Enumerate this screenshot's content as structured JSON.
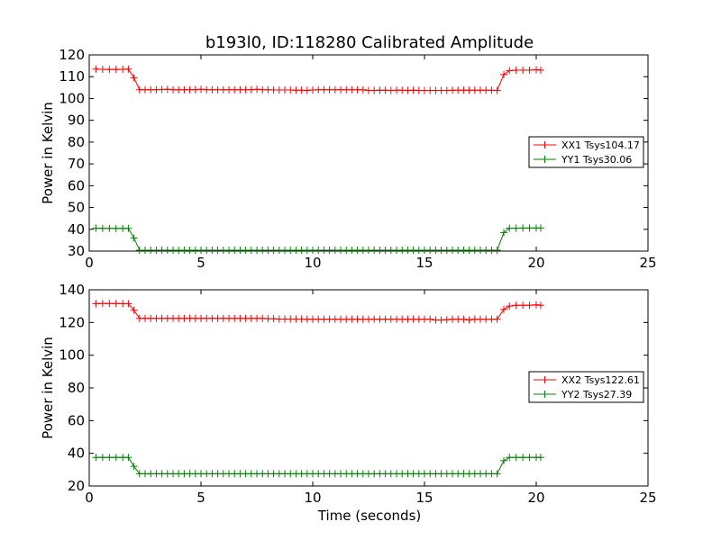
{
  "figure": {
    "title": "b193l0, ID:118280 Calibrated Amplitude",
    "xlabel": "Time (seconds)"
  },
  "chart_data": [
    {
      "type": "line",
      "ylabel": "Power in Kelvin",
      "xlim": [
        0,
        25
      ],
      "ylim": [
        30,
        120
      ],
      "xticks": [
        0,
        5,
        10,
        15,
        20,
        25
      ],
      "yticks": [
        30,
        40,
        50,
        60,
        70,
        80,
        90,
        100,
        110,
        120
      ],
      "grid": false,
      "legend_position": "center-right",
      "x": [
        0.3,
        0.6,
        0.9,
        1.2,
        1.5,
        1.75,
        2.0,
        2.25,
        2.5,
        2.75,
        3.0,
        3.25,
        3.5,
        3.75,
        4.0,
        4.25,
        4.5,
        4.75,
        5.0,
        5.25,
        5.5,
        5.75,
        6.0,
        6.25,
        6.5,
        6.75,
        7.0,
        7.25,
        7.5,
        7.75,
        8.0,
        8.25,
        8.5,
        8.75,
        9.0,
        9.25,
        9.5,
        9.75,
        10.0,
        10.25,
        10.5,
        10.75,
        11.0,
        11.25,
        11.5,
        11.75,
        12.0,
        12.25,
        12.5,
        12.75,
        13.0,
        13.25,
        13.5,
        13.75,
        14.0,
        14.25,
        14.5,
        14.75,
        15.0,
        15.25,
        15.5,
        15.75,
        16.0,
        16.25,
        16.5,
        16.75,
        17.0,
        17.25,
        17.5,
        17.75,
        18.0,
        18.25,
        18.55,
        18.8,
        19.1,
        19.4,
        19.7,
        20.0,
        20.2
      ],
      "series": [
        {
          "name": "XX1 Tsys104.17",
          "color": "#ff0000",
          "values": [
            113.5,
            113.4,
            113.3,
            113.3,
            113.4,
            113.5,
            109.5,
            104.0,
            104.0,
            104.0,
            104.0,
            104.1,
            104.2,
            104.0,
            104.0,
            104.0,
            104.0,
            104.0,
            104.2,
            104.0,
            104.0,
            104.0,
            104.0,
            104.0,
            104.0,
            104.0,
            104.0,
            104.0,
            104.2,
            104.0,
            104.0,
            103.9,
            103.9,
            103.9,
            103.9,
            103.8,
            103.8,
            103.7,
            103.9,
            104.0,
            104.0,
            104.0,
            104.0,
            104.0,
            104.0,
            104.0,
            104.0,
            104.0,
            103.7,
            103.7,
            103.8,
            103.8,
            103.7,
            103.8,
            103.8,
            103.7,
            103.8,
            103.7,
            103.7,
            103.7,
            103.7,
            103.7,
            103.7,
            103.8,
            103.8,
            103.8,
            103.8,
            103.8,
            103.8,
            103.8,
            103.8,
            103.7,
            111.0,
            112.8,
            113.0,
            113.0,
            113.0,
            113.2,
            113.0
          ]
        },
        {
          "name": "YY1 Tsys30.06",
          "color": "#008000",
          "values": [
            40.5,
            40.4,
            40.4,
            40.4,
            40.4,
            40.4,
            36.0,
            30.4,
            30.4,
            30.4,
            30.4,
            30.4,
            30.4,
            30.4,
            30.4,
            30.4,
            30.4,
            30.4,
            30.4,
            30.4,
            30.4,
            30.4,
            30.4,
            30.4,
            30.4,
            30.4,
            30.4,
            30.4,
            30.4,
            30.4,
            30.4,
            30.4,
            30.4,
            30.4,
            30.4,
            30.4,
            30.4,
            30.4,
            30.4,
            30.4,
            30.4,
            30.4,
            30.4,
            30.4,
            30.4,
            30.4,
            30.4,
            30.4,
            30.4,
            30.4,
            30.4,
            30.4,
            30.4,
            30.4,
            30.4,
            30.4,
            30.4,
            30.4,
            30.4,
            30.4,
            30.4,
            30.4,
            30.4,
            30.4,
            30.4,
            30.4,
            30.4,
            30.4,
            30.4,
            30.4,
            30.4,
            30.4,
            38.5,
            40.5,
            40.5,
            40.6,
            40.6,
            40.6,
            40.6
          ]
        }
      ]
    },
    {
      "type": "line",
      "ylabel": "Power in Kelvin",
      "xlabel": "Time (seconds)",
      "xlim": [
        0,
        25
      ],
      "ylim": [
        20,
        140
      ],
      "xticks": [
        0,
        5,
        10,
        15,
        20,
        25
      ],
      "yticks": [
        20,
        40,
        60,
        80,
        100,
        120,
        140
      ],
      "grid": false,
      "legend_position": "center-right",
      "x": [
        0.3,
        0.6,
        0.9,
        1.2,
        1.5,
        1.75,
        2.0,
        2.25,
        2.5,
        2.75,
        3.0,
        3.25,
        3.5,
        3.75,
        4.0,
        4.25,
        4.5,
        4.75,
        5.0,
        5.25,
        5.5,
        5.75,
        6.0,
        6.25,
        6.5,
        6.75,
        7.0,
        7.25,
        7.5,
        7.75,
        8.0,
        8.25,
        8.5,
        8.75,
        9.0,
        9.25,
        9.5,
        9.75,
        10.0,
        10.25,
        10.5,
        10.75,
        11.0,
        11.25,
        11.5,
        11.75,
        12.0,
        12.25,
        12.5,
        12.75,
        13.0,
        13.25,
        13.5,
        13.75,
        14.0,
        14.25,
        14.5,
        14.75,
        15.0,
        15.25,
        15.5,
        15.75,
        16.0,
        16.25,
        16.5,
        16.75,
        17.0,
        17.25,
        17.5,
        17.75,
        18.0,
        18.25,
        18.55,
        18.8,
        19.1,
        19.4,
        19.7,
        20.0,
        20.2
      ],
      "series": [
        {
          "name": "XX2 Tsys122.61",
          "color": "#ff0000",
          "values": [
            131.5,
            131.6,
            131.6,
            131.6,
            131.5,
            131.5,
            127.5,
            122.5,
            122.5,
            122.5,
            122.5,
            122.5,
            122.5,
            122.5,
            122.5,
            122.5,
            122.6,
            122.5,
            122.5,
            122.5,
            122.5,
            122.5,
            122.5,
            122.5,
            122.5,
            122.5,
            122.5,
            122.5,
            122.5,
            122.5,
            122.3,
            122.3,
            122.1,
            122.1,
            122.1,
            122.1,
            122.1,
            122.0,
            122.0,
            122.0,
            122.0,
            122.0,
            122.0,
            122.0,
            122.0,
            122.0,
            122.0,
            122.0,
            122.0,
            122.0,
            122.0,
            122.0,
            122.0,
            122.0,
            122.0,
            122.0,
            122.0,
            122.0,
            122.0,
            122.0,
            121.5,
            121.5,
            121.7,
            122.0,
            122.0,
            122.0,
            121.5,
            122.0,
            122.0,
            122.0,
            122.0,
            122.0,
            128.0,
            130.0,
            130.5,
            130.5,
            130.5,
            130.8,
            130.5
          ]
        },
        {
          "name": "YY2 Tsys27.39",
          "color": "#008000",
          "values": [
            37.5,
            37.5,
            37.5,
            37.5,
            37.5,
            37.5,
            32.0,
            27.5,
            27.5,
            27.5,
            27.5,
            27.5,
            27.5,
            27.5,
            27.5,
            27.5,
            27.5,
            27.5,
            27.5,
            27.5,
            27.5,
            27.5,
            27.5,
            27.5,
            27.5,
            27.5,
            27.5,
            27.5,
            27.5,
            27.5,
            27.5,
            27.5,
            27.5,
            27.5,
            27.5,
            27.5,
            27.5,
            27.5,
            27.5,
            27.5,
            27.5,
            27.5,
            27.5,
            27.5,
            27.5,
            27.5,
            27.5,
            27.5,
            27.5,
            27.5,
            27.5,
            27.5,
            27.5,
            27.5,
            27.5,
            27.5,
            27.5,
            27.5,
            27.5,
            27.5,
            27.5,
            27.5,
            27.5,
            27.5,
            27.5,
            27.5,
            27.5,
            27.5,
            27.5,
            27.5,
            27.5,
            27.5,
            35.5,
            37.5,
            37.5,
            37.5,
            37.5,
            37.5,
            37.5
          ]
        }
      ]
    }
  ]
}
